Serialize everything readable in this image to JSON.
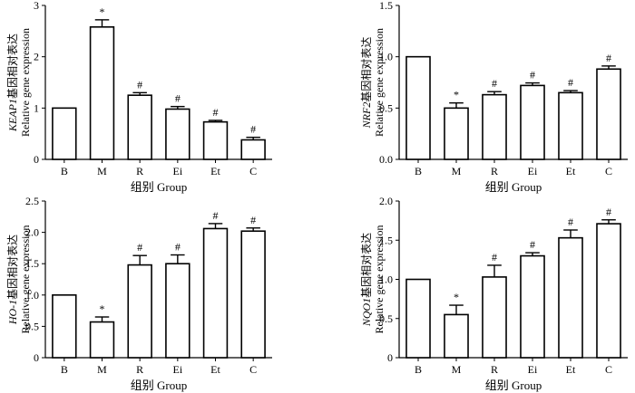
{
  "chart_data": [
    {
      "type": "bar",
      "panel": "KEAP1",
      "title": "",
      "categories": [
        "B",
        "M",
        "R",
        "Ei",
        "Et",
        "C"
      ],
      "values": [
        1.0,
        2.58,
        1.25,
        0.98,
        0.73,
        0.38
      ],
      "errors": [
        0.0,
        0.14,
        0.05,
        0.05,
        0.03,
        0.05
      ],
      "markers": [
        "",
        "*",
        "#",
        "#",
        "#",
        "#"
      ],
      "ylim": [
        0,
        3
      ],
      "yticks": [
        "0",
        "1",
        "2",
        "3"
      ],
      "xlabel": "组别  Group",
      "ylabel_gene": "KEAP1",
      "ylabel_suffix": "基因相对表达",
      "ylabel_en": "Relative gene expression"
    },
    {
      "type": "bar",
      "panel": "NRF2",
      "title": "",
      "categories": [
        "B",
        "M",
        "R",
        "Ei",
        "Et",
        "C"
      ],
      "values": [
        1.0,
        0.5,
        0.63,
        0.72,
        0.65,
        0.88
      ],
      "errors": [
        0.0,
        0.05,
        0.03,
        0.025,
        0.02,
        0.03
      ],
      "markers": [
        "",
        "*",
        "#",
        "#",
        "#",
        "#"
      ],
      "ylim": [
        0,
        1.5
      ],
      "yticks": [
        "0.0",
        "0.5",
        "1.0",
        "1.5"
      ],
      "xlabel": "组别  Group",
      "ylabel_gene": "NRF2",
      "ylabel_suffix": "基因相对表达",
      "ylabel_en": "Relative gene expression"
    },
    {
      "type": "bar",
      "panel": "HO-1",
      "title": "",
      "categories": [
        "B",
        "M",
        "R",
        "Ei",
        "Et",
        "C"
      ],
      "values": [
        1.0,
        0.57,
        1.48,
        1.5,
        2.06,
        2.02
      ],
      "errors": [
        0.0,
        0.08,
        0.15,
        0.14,
        0.08,
        0.05
      ],
      "markers": [
        "",
        "*",
        "#",
        "#",
        "#",
        "#"
      ],
      "ylim": [
        0,
        2.5
      ],
      "yticks": [
        "0",
        "0.5",
        "1.0",
        "1.5",
        "2.0",
        "2.5"
      ],
      "xlabel": "组别  Group",
      "ylabel_gene": "HO-1",
      "ylabel_suffix": "基因相对表达",
      "ylabel_en": "Relative gene expression"
    },
    {
      "type": "bar",
      "panel": "NQO1",
      "title": "",
      "categories": [
        "B",
        "M",
        "R",
        "Ei",
        "Et",
        "C"
      ],
      "values": [
        1.0,
        0.55,
        1.03,
        1.3,
        1.53,
        1.71
      ],
      "errors": [
        0.0,
        0.12,
        0.15,
        0.04,
        0.1,
        0.05
      ],
      "markers": [
        "",
        "*",
        "#",
        "#",
        "#",
        "#"
      ],
      "ylim": [
        0,
        2
      ],
      "yticks": [
        "0",
        "0.5",
        "1.0",
        "1.5",
        "2.0"
      ],
      "xlabel": "组别  Group",
      "ylabel_gene": "NQO1",
      "ylabel_suffix": "基因相对表达",
      "ylabel_en": "Relative gene expression"
    }
  ]
}
